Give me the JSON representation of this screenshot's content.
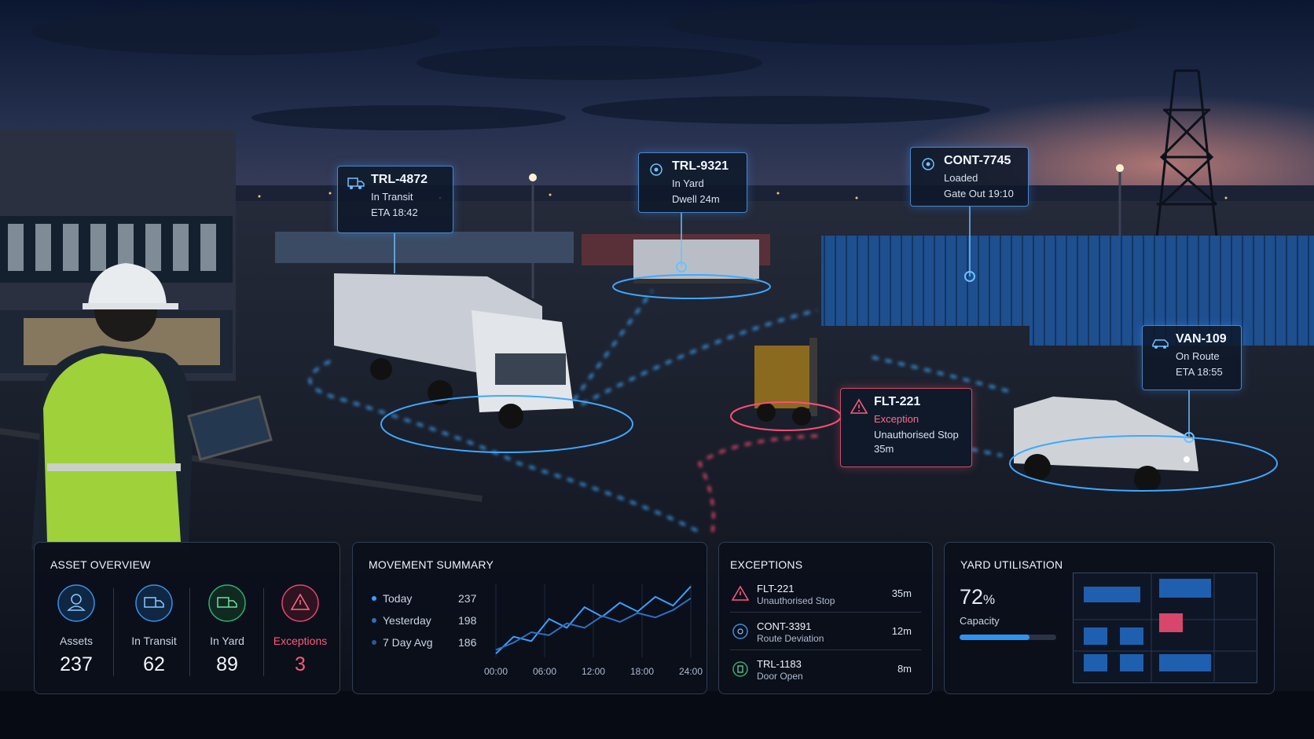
{
  "callouts": [
    {
      "id": "TRL-4872",
      "status": "In Transit",
      "detail": "ETA 18:42"
    },
    {
      "id": "TRL-9321",
      "status": "In Yard",
      "detail": "Dwell 24m"
    },
    {
      "id": "CONT-7745",
      "status": "Loaded",
      "detail": "Gate Out 19:10"
    },
    {
      "id": "FLT-221",
      "status": "Exception",
      "detail": "Unauthorised Stop",
      "duration": "35m"
    },
    {
      "id": "VAN-109",
      "status": "On Route",
      "detail": "ETA 18:55"
    }
  ],
  "asset_overview": {
    "title": "ASSET OVERVIEW",
    "items": [
      {
        "label": "Assets",
        "value": 237
      },
      {
        "label": "In Transit",
        "value": 62
      },
      {
        "label": "In Yard",
        "value": 89
      },
      {
        "label": "Exceptions",
        "value": 3
      }
    ]
  },
  "movement_summary": {
    "title": "MOVEMENT SUMMARY",
    "legend": [
      {
        "label": "Today",
        "value": 237
      },
      {
        "label": "Yesterday",
        "value": 198
      },
      {
        "label": "7 Day Avg",
        "value": 186
      }
    ],
    "chart_data": {
      "type": "line",
      "x_labels": [
        "00:00",
        "06:00",
        "12:00",
        "18:00",
        "24:00"
      ],
      "ylim": [
        0,
        100
      ],
      "series": [
        {
          "color": "#3aa0ff",
          "values": [
            5,
            28,
            22,
            52,
            40,
            68,
            55,
            74,
            62,
            82,
            70,
            96
          ]
        },
        {
          "color": "#2f6fc0",
          "values": [
            10,
            20,
            34,
            30,
            46,
            40,
            56,
            48,
            60,
            54,
            64,
            80
          ]
        }
      ]
    }
  },
  "exceptions": {
    "title": "EXCEPTIONS",
    "items": [
      {
        "id": "FLT-221",
        "detail": "Unauthorised Stop",
        "time": "35m"
      },
      {
        "id": "CONT-3391",
        "detail": "Route Deviation",
        "time": "12m"
      },
      {
        "id": "TRL-1183",
        "detail": "Door Open",
        "time": "8m"
      }
    ]
  },
  "yard_utilisation": {
    "title": "YARD UTILISATION",
    "value": 72,
    "unit": "%",
    "label": "Capacity"
  }
}
